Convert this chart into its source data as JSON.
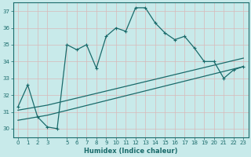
{
  "xlabel": "Humidex (Indice chaleur)",
  "bg_color": "#c8eaea",
  "grid_color": "#b0d8d8",
  "line_color": "#1a6b6b",
  "xlim": [
    -0.5,
    23.5
  ],
  "ylim": [
    29.5,
    37.5
  ],
  "yticks": [
    30,
    31,
    32,
    33,
    34,
    35,
    36,
    37
  ],
  "xticks": [
    0,
    1,
    2,
    3,
    5,
    6,
    7,
    8,
    9,
    10,
    11,
    12,
    13,
    14,
    15,
    16,
    17,
    18,
    19,
    20,
    21,
    22,
    23
  ],
  "series1_x": [
    0,
    1,
    2,
    3,
    4,
    5,
    6,
    7,
    8,
    9,
    10,
    11,
    12,
    13,
    14,
    15,
    16,
    17,
    18,
    19,
    20,
    21,
    22,
    23
  ],
  "series1_y": [
    31.3,
    32.6,
    30.7,
    30.1,
    30.0,
    35.0,
    34.7,
    35.0,
    33.6,
    35.5,
    36.0,
    35.8,
    37.2,
    37.2,
    36.3,
    35.7,
    35.3,
    35.5,
    34.8,
    34.0,
    34.0,
    33.0,
    33.5,
    33.7
  ],
  "series2_x": [
    0,
    3,
    23
  ],
  "series2_y": [
    30.5,
    30.8,
    33.7
  ],
  "series3_x": [
    0,
    3,
    23
  ],
  "series3_y": [
    31.1,
    31.4,
    34.2
  ]
}
